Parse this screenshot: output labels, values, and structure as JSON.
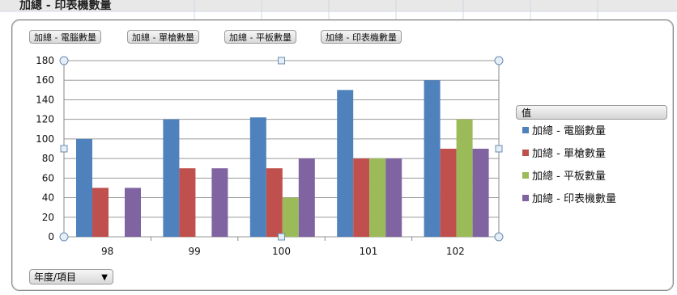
{
  "top_title": "加總 - 印表機數量",
  "field_buttons": [
    "加總 - 電腦數量",
    "加總 - 單槍數量",
    "加總 - 平板數量",
    "加總 - 印表機數量"
  ],
  "legend_title": "值",
  "axis_field_button": "年度/項目",
  "colors": {
    "電腦": "#4f81bd",
    "單槍": "#c0504d",
    "平板": "#9bbb59",
    "印表機": "#8064a2"
  },
  "chart_data": {
    "type": "bar",
    "categories": [
      "98",
      "99",
      "100",
      "101",
      "102"
    ],
    "ylim": [
      0,
      180
    ],
    "yticks": [
      0,
      20,
      40,
      60,
      80,
      100,
      120,
      140,
      160,
      180
    ],
    "series": [
      {
        "name": "加總 - 電腦數量",
        "values": [
          100,
          120,
          122,
          150,
          160
        ],
        "color": "#4f81bd"
      },
      {
        "name": "加總 - 單槍數量",
        "values": [
          50,
          70,
          70,
          80,
          90
        ],
        "color": "#c0504d"
      },
      {
        "name": "加總 - 平板數量",
        "values": [
          0,
          0,
          40,
          80,
          120
        ],
        "color": "#9bbb59"
      },
      {
        "name": "加總 - 印表機數量",
        "values": [
          50,
          70,
          80,
          80,
          90
        ],
        "color": "#8064a2"
      }
    ]
  }
}
